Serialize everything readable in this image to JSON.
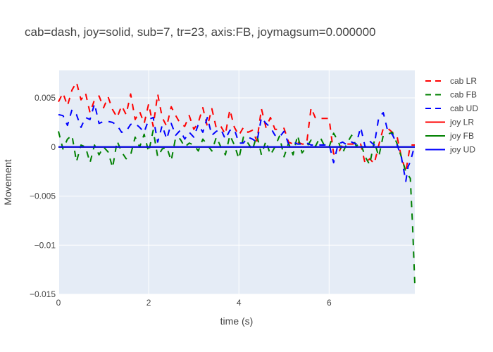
{
  "chart_data": {
    "type": "line",
    "title": "cab=dash, joy=solid, sub=7, tr=23, axis:FB, joymagsum=0.000000",
    "xlabel": "time (s)",
    "ylabel": "Movement",
    "xlim": [
      0,
      7.9
    ],
    "ylim": [
      -0.015,
      0.0078
    ],
    "x_ticks": [
      0,
      2,
      4,
      6
    ],
    "x_tick_labels": [
      "0",
      "2",
      "4",
      "6"
    ],
    "y_ticks": [
      0.005,
      0,
      -0.005,
      -0.01,
      -0.015
    ],
    "y_tick_labels": [
      "0.005",
      "0",
      "−0.005",
      "−0.01",
      "−0.015"
    ],
    "grid": true,
    "legend_position": "right",
    "series": [
      {
        "name": "cab LR",
        "color": "#ff0000",
        "dash": "dash",
        "x": [
          0,
          0.1,
          0.2,
          0.3,
          0.4,
          0.5,
          0.6,
          0.7,
          0.8,
          0.9,
          1.0,
          1.1,
          1.2,
          1.3,
          1.4,
          1.5,
          1.6,
          1.7,
          1.8,
          1.9,
          2.0,
          2.1,
          2.2,
          2.3,
          2.4,
          2.5,
          2.6,
          2.7,
          2.8,
          2.9,
          3.0,
          3.1,
          3.2,
          3.3,
          3.4,
          3.5,
          3.6,
          3.7,
          3.8,
          3.9,
          4.0,
          4.1,
          4.2,
          4.3,
          4.4,
          4.5,
          4.6,
          4.7,
          4.8,
          4.9,
          5.0,
          5.1,
          5.2,
          5.3,
          5.4,
          5.5,
          5.6,
          5.7,
          5.8,
          5.9,
          6.0,
          6.1,
          6.2,
          6.3,
          6.4,
          6.5,
          6.6,
          6.7,
          6.8,
          6.9,
          7.0,
          7.1,
          7.2,
          7.3,
          7.4,
          7.5,
          7.6,
          7.7,
          7.8,
          7.9
        ],
        "values": [
          0.0046,
          0.0055,
          0.0042,
          0.0058,
          0.0066,
          0.0048,
          0.0055,
          0.0035,
          0.0048,
          0.0052,
          0.004,
          0.0051,
          0.0038,
          0.003,
          0.0042,
          0.0033,
          0.0054,
          0.0028,
          0.0036,
          0.0024,
          0.0044,
          0.0021,
          0.0054,
          0.003,
          0.0021,
          0.0041,
          0.0032,
          0.0024,
          0.0021,
          0.0032,
          0.0018,
          0.0025,
          0.004,
          0.0021,
          0.0039,
          0.0019,
          0.0021,
          0.0013,
          0.0038,
          0.002,
          0.0012,
          0.002,
          0.0015,
          0.0017,
          0.0006,
          0.0039,
          0.002,
          0.003,
          0.0018,
          0.0018,
          0.0019,
          0.0005,
          0.0003,
          0.0005,
          0.0003,
          0.0003,
          0.004,
          0.0029,
          0.0029,
          0.0029,
          0.0029,
          -0.0007,
          -0.0007,
          0.0003,
          0.0003,
          0.0003,
          0.0003,
          0.0003,
          -0.0017,
          -0.0012,
          -0.0017,
          0.0002,
          0.0019,
          0.0019,
          0.0015,
          0.0012,
          -0.001,
          -0.0025,
          0.0002,
          0.0002
        ]
      },
      {
        "name": "cab FB",
        "color": "#008000",
        "dash": "dash",
        "x": [
          0,
          0.1,
          0.2,
          0.3,
          0.4,
          0.5,
          0.6,
          0.7,
          0.8,
          0.9,
          1.0,
          1.1,
          1.2,
          1.3,
          1.4,
          1.5,
          1.6,
          1.7,
          1.8,
          1.9,
          2.0,
          2.1,
          2.2,
          2.3,
          2.4,
          2.5,
          2.6,
          2.7,
          2.8,
          2.9,
          3.0,
          3.1,
          3.2,
          3.3,
          3.4,
          3.5,
          3.6,
          3.7,
          3.8,
          3.9,
          4.0,
          4.1,
          4.2,
          4.3,
          4.4,
          4.5,
          4.6,
          4.7,
          4.8,
          4.9,
          5.0,
          5.1,
          5.2,
          5.3,
          5.4,
          5.5,
          5.6,
          5.7,
          5.8,
          5.9,
          6.0,
          6.1,
          6.2,
          6.3,
          6.4,
          6.5,
          6.6,
          6.7,
          6.8,
          6.9,
          7.0,
          7.1,
          7.2,
          7.3,
          7.4,
          7.5,
          7.6,
          7.7,
          7.8,
          7.85,
          7.9
        ],
        "values": [
          0.0016,
          -0.0002,
          0.0008,
          0.0012,
          -0.0015,
          0.0002,
          0.0,
          -0.0016,
          0.0002,
          -0.0008,
          0.0,
          -0.0005,
          -0.0021,
          0.0006,
          -0.0005,
          -0.0012,
          -0.0008,
          0.001,
          0.0,
          0.0013,
          -0.0005,
          0.0017,
          -0.001,
          -0.0002,
          0.0,
          -0.0014,
          0.001,
          0.0008,
          0.0,
          0.0004,
          0.0002,
          -0.0004,
          0.0008,
          0.0002,
          -0.0004,
          0.001,
          0.0,
          -0.0008,
          0.0012,
          0.0002,
          -0.0012,
          0.001,
          0.0004,
          -0.0003,
          0.0012,
          -0.0008,
          0.0006,
          -0.0008,
          0.0,
          0.0011,
          -0.001,
          0.0004,
          -0.0008,
          0.0012,
          -0.0006,
          0.0,
          0.0007,
          0.0001,
          0.001,
          0.0001,
          0.0,
          0.0014,
          0.0006,
          -0.0006,
          0.0004,
          0.0012,
          0.0001,
          0.0004,
          -0.001,
          -0.0018,
          0.0006,
          -0.001,
          0.0012,
          0.0013,
          0.0015,
          0.0004,
          -0.001,
          -0.0025,
          -0.0032,
          -0.008,
          -0.014
        ]
      },
      {
        "name": "cab UD",
        "color": "#0000ff",
        "dash": "dash",
        "x": [
          0,
          0.1,
          0.2,
          0.3,
          0.4,
          0.5,
          0.6,
          0.7,
          0.8,
          0.9,
          1.0,
          1.1,
          1.2,
          1.3,
          1.4,
          1.5,
          1.6,
          1.7,
          1.8,
          1.9,
          2.0,
          2.1,
          2.2,
          2.3,
          2.4,
          2.5,
          2.6,
          2.7,
          2.8,
          2.9,
          3.0,
          3.1,
          3.2,
          3.3,
          3.4,
          3.5,
          3.6,
          3.7,
          3.8,
          3.9,
          4.0,
          4.1,
          4.2,
          4.3,
          4.4,
          4.5,
          4.6,
          4.7,
          4.8,
          4.9,
          5.0,
          5.1,
          5.2,
          5.3,
          5.4,
          5.5,
          5.6,
          5.7,
          5.8,
          5.9,
          6.0,
          6.1,
          6.2,
          6.3,
          6.4,
          6.5,
          6.6,
          6.7,
          6.8,
          6.9,
          7.0,
          7.1,
          7.2,
          7.3,
          7.4,
          7.5,
          7.6,
          7.7,
          7.75,
          7.8,
          7.9
        ],
        "values": [
          0.0033,
          0.0032,
          0.0022,
          0.0038,
          0.0033,
          0.002,
          0.003,
          0.0028,
          0.0044,
          0.0024,
          0.0026,
          0.0026,
          0.0025,
          0.0022,
          0.0015,
          0.0016,
          0.0023,
          0.0024,
          0.002,
          0.0015,
          0.0028,
          0.003,
          0.0005,
          0.0022,
          0.0008,
          0.0024,
          0.0012,
          0.0017,
          0.0008,
          0.0015,
          0.001,
          0.0023,
          0.0015,
          0.003,
          0.0012,
          0.0016,
          0.0018,
          0.0008,
          0.0017,
          0.0018,
          0.0004,
          0.0004,
          0.001,
          0.0008,
          0.0005,
          0.003,
          0.0024,
          0.002,
          0.0012,
          0.001,
          0.0016,
          0.0003,
          0.0005,
          0.0003,
          0.0003,
          0.0004,
          0.0002,
          0.0002,
          0.0002,
          0.0002,
          0.0003,
          -0.0016,
          0.0003,
          0.0005,
          0.0002,
          0.0005,
          0.0003,
          0.002,
          0.0,
          0.0006,
          0.0002,
          0.003,
          0.0035,
          0.0016,
          0.0013,
          0.0003,
          -0.001,
          -0.0035,
          -0.002,
          -0.0015,
          0.0002
        ]
      },
      {
        "name": "joy LR",
        "color": "#ff0000",
        "dash": "solid",
        "x": [
          0,
          7.9
        ],
        "values": [
          0,
          0
        ]
      },
      {
        "name": "joy FB",
        "color": "#008000",
        "dash": "solid",
        "x": [
          0,
          7.9
        ],
        "values": [
          0,
          0
        ]
      },
      {
        "name": "joy UD",
        "color": "#0000ff",
        "dash": "solid",
        "x": [
          0,
          7.9
        ],
        "values": [
          0,
          0
        ]
      }
    ]
  }
}
